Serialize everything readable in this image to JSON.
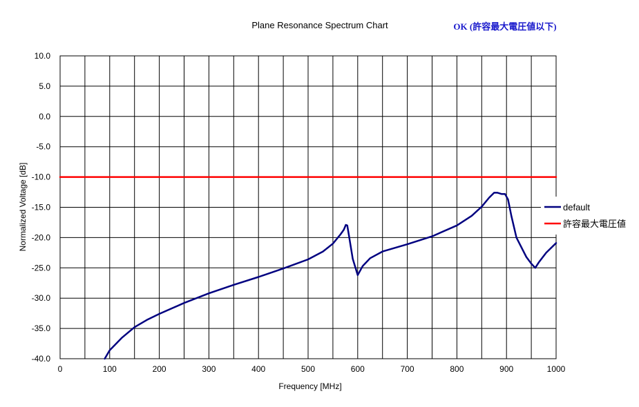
{
  "status_note": "OK (許容最大電圧値以下)",
  "chart_data": {
    "type": "line",
    "title": "Plane Resonance Spectrum Chart",
    "xlabel": "Frequency [MHz]",
    "ylabel": "Normalized Voltage [dB]",
    "xlim": [
      0,
      1000
    ],
    "ylim": [
      -40,
      10
    ],
    "x_ticks": [
      0,
      100,
      200,
      300,
      400,
      500,
      600,
      700,
      800,
      900,
      1000
    ],
    "x_tick_labels": [
      "0",
      "100",
      "200",
      "300",
      "400",
      "500",
      "600",
      "700",
      "800",
      "900",
      "1000"
    ],
    "x_minor_step": 50,
    "y_ticks": [
      10,
      5,
      0,
      -5,
      -10,
      -15,
      -20,
      -25,
      -30,
      -35,
      -40
    ],
    "y_tick_labels": [
      "10.0",
      "5.0",
      "0.0",
      "-5.0",
      "-10.0",
      "-15.0",
      "-20.0",
      "-25.0",
      "-30.0",
      "-35.0",
      "-40.0"
    ],
    "grid": true,
    "legend_position": "right",
    "series": [
      {
        "name": "default",
        "color": "#000080",
        "x": [
          90,
          100,
          125,
          150,
          175,
          200,
          250,
          300,
          350,
          400,
          450,
          500,
          530,
          550,
          565,
          572,
          576,
          579,
          582,
          590,
          600,
          610,
          625,
          650,
          700,
          750,
          800,
          830,
          850,
          865,
          875,
          882,
          890,
          897,
          903,
          910,
          920,
          940,
          950,
          958,
          965,
          980,
          1000
        ],
        "values": [
          -40.0,
          -38.6,
          -36.5,
          -34.8,
          -33.6,
          -32.6,
          -30.8,
          -29.2,
          -27.8,
          -26.5,
          -25.1,
          -23.6,
          -22.3,
          -21.0,
          -19.5,
          -18.7,
          -17.9,
          -18.0,
          -19.5,
          -23.5,
          -26.2,
          -24.7,
          -23.4,
          -22.3,
          -21.1,
          -19.8,
          -18.0,
          -16.4,
          -14.9,
          -13.4,
          -12.6,
          -12.6,
          -12.8,
          -12.8,
          -13.7,
          -16.5,
          -20.0,
          -23.2,
          -24.3,
          -25.0,
          -24.1,
          -22.5,
          -20.9
        ]
      },
      {
        "name": "許容最大電圧値",
        "color": "#ff0000",
        "x": [
          0,
          1000
        ],
        "values": [
          -10.0,
          -10.0
        ]
      }
    ]
  }
}
